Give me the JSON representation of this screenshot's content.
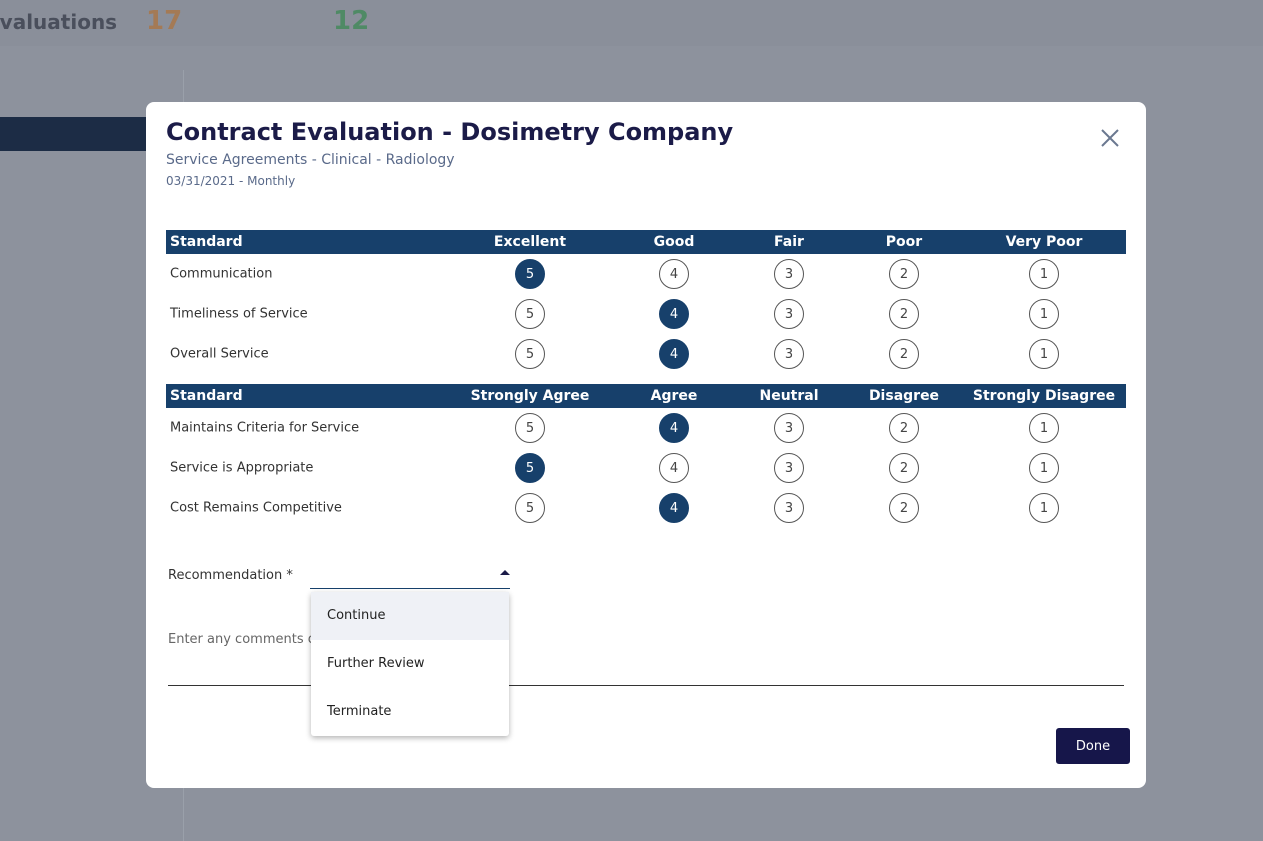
{
  "background": {
    "title": "Evaluations",
    "counts": [
      "17",
      "12"
    ]
  },
  "modal": {
    "title": "Contract Evaluation - Dosimetry Company",
    "subtitle": "Service Agreements - Clinical - Radiology",
    "date": "03/31/2021 - Monthly",
    "scale": [
      5,
      4,
      3,
      2,
      1
    ],
    "sections": [
      {
        "headers": [
          "Standard",
          "Excellent",
          "Good",
          "Fair",
          "Poor",
          "Very Poor"
        ],
        "rows": [
          {
            "label": "Communication",
            "selected": 5
          },
          {
            "label": "Timeliness of Service",
            "selected": 4
          },
          {
            "label": "Overall Service",
            "selected": 4
          }
        ]
      },
      {
        "headers": [
          "Standard",
          "Strongly Agree",
          "Agree",
          "Neutral",
          "Disagree",
          "Strongly Disagree"
        ],
        "rows": [
          {
            "label": "Maintains Criteria for Service",
            "selected": 4
          },
          {
            "label": "Service is Appropriate",
            "selected": 5
          },
          {
            "label": "Cost Remains Competitive",
            "selected": 4
          }
        ]
      }
    ],
    "recommendation_label": "Recommendation *",
    "options": [
      "Continue",
      "Further Review",
      "Terminate"
    ],
    "comments_placeholder": "Enter any comments or",
    "done": "Done"
  }
}
